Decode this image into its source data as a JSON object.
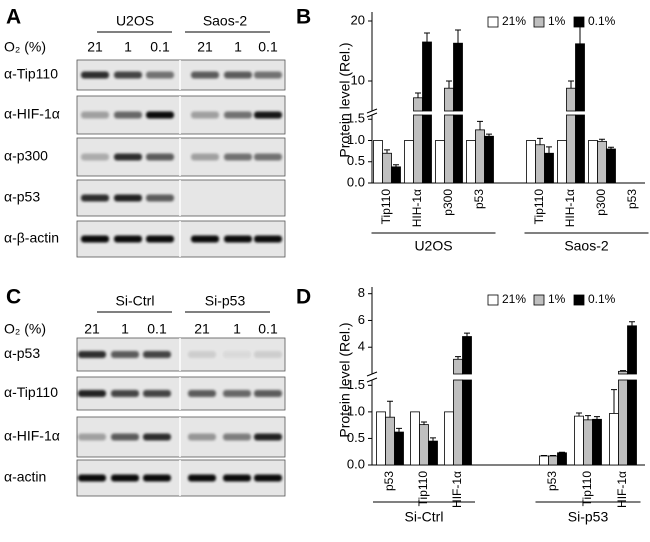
{
  "panels": {
    "A": {
      "label": "A",
      "cell_lines": [
        "U2OS",
        "Saos-2"
      ],
      "o2_label": "O₂ (%)",
      "lanes": [
        "21",
        "1",
        "0.1",
        "21",
        "1",
        "0.1"
      ],
      "rows": [
        "α-Tip110",
        "α-HIF-1α",
        "α-p300",
        "α-p53",
        "α-β-actin"
      ]
    },
    "C": {
      "label": "C",
      "cell_lines": [
        "Si-Ctrl",
        "Si-p53"
      ],
      "o2_label": "O₂ (%)",
      "lanes": [
        "21",
        "1",
        "0.1",
        "21",
        "1",
        "0.1"
      ],
      "rows": [
        "α-p53",
        "α-Tip110",
        "α-HIF-1α",
        "α-actin"
      ]
    }
  },
  "chart_data": [
    {
      "type": "bar",
      "panel_label": "B",
      "ylabel": "Protein level (Rel.)",
      "broken_axis": true,
      "legend": "top",
      "groups": [
        {
          "label": "U2OS",
          "categories": [
            "Tip110",
            "HIH-1α",
            "p300",
            "p53"
          ]
        },
        {
          "label": "Saos-2",
          "categories": [
            "Tip110",
            "HIH-1α",
            "p300",
            "p53"
          ]
        }
      ],
      "series": [
        {
          "name": "21%",
          "color": "#ffffff",
          "values": [
            [
              1.0,
              1.0,
              1.0,
              1.0
            ],
            [
              1.0,
              1.0,
              1.0,
              null
            ]
          ]
        },
        {
          "name": "1%",
          "color": "#bfbfbf",
          "values": [
            [
              0.7,
              7.2,
              8.8,
              1.25
            ],
            [
              0.9,
              8.8,
              0.98,
              null
            ]
          ],
          "errors": [
            [
              0.08,
              0.8,
              1.2,
              0.2
            ],
            [
              0.15,
              1.2,
              0.05,
              null
            ]
          ]
        },
        {
          "name": "0.1%",
          "color": "#000000",
          "values": [
            [
              0.38,
              16.5,
              16.3,
              1.1
            ],
            [
              0.7,
              16.2,
              0.8,
              null
            ]
          ],
          "errors": [
            [
              0.05,
              1.5,
              2.2,
              0.05
            ],
            [
              0.15,
              3.5,
              0.04,
              null
            ]
          ]
        }
      ],
      "ylim": [
        0,
        1.6
      ],
      "yticks": [
        {
          "value": 0,
          "label": "0.0"
        },
        {
          "value": 0.5,
          "label": "0.5"
        },
        {
          "value": 1,
          "label": "1.0"
        },
        {
          "value": 1.5,
          "label": "1.5"
        }
      ],
      "ylim_upper": [
        5,
        21.5
      ],
      "yticks_upper": [
        10,
        20
      ]
    },
    {
      "type": "bar",
      "panel_label": "D",
      "ylabel": "Protein level (Rel.)",
      "broken_axis": true,
      "legend": "top",
      "groups": [
        {
          "label": "Si-Ctrl",
          "categories": [
            "p53",
            "Tip110",
            "HIF-1α"
          ]
        },
        {
          "label": "Si-p53",
          "categories": [
            "p53",
            "Tip110",
            "HIF-1α"
          ]
        }
      ],
      "series": [
        {
          "name": "21%",
          "color": "#ffffff",
          "values": [
            [
              1.0,
              1.0,
              1.0
            ],
            [
              0.17,
              0.92,
              0.97
            ]
          ],
          "errors": [
            [
              0,
              0,
              0
            ],
            [
              0.01,
              0.06,
              0.45
            ]
          ]
        },
        {
          "name": "1%",
          "color": "#bfbfbf",
          "values": [
            [
              0.9,
              0.76,
              3.1
            ],
            [
              0.17,
              0.85,
              2.2
            ]
          ],
          "errors": [
            [
              0.3,
              0.05,
              0.2
            ],
            [
              0.01,
              0.08,
              0.05
            ]
          ]
        },
        {
          "name": "0.1%",
          "color": "#000000",
          "values": [
            [
              0.62,
              0.45,
              4.8
            ],
            [
              0.23,
              0.86,
              5.6
            ]
          ],
          "errors": [
            [
              0.07,
              0.06,
              0.25
            ],
            [
              0.01,
              0.05,
              0.3
            ]
          ]
        }
      ],
      "ylim": [
        0,
        1.6
      ],
      "yticks": [
        {
          "value": 0,
          "label": "0.0"
        },
        {
          "value": 0.5,
          "label": "0.5"
        },
        {
          "value": 1,
          "label": "1.0"
        },
        {
          "value": 1.5,
          "label": "1.5"
        }
      ],
      "ylim_upper": [
        2,
        8.5
      ],
      "yticks_upper": [
        4,
        6,
        8
      ]
    }
  ]
}
